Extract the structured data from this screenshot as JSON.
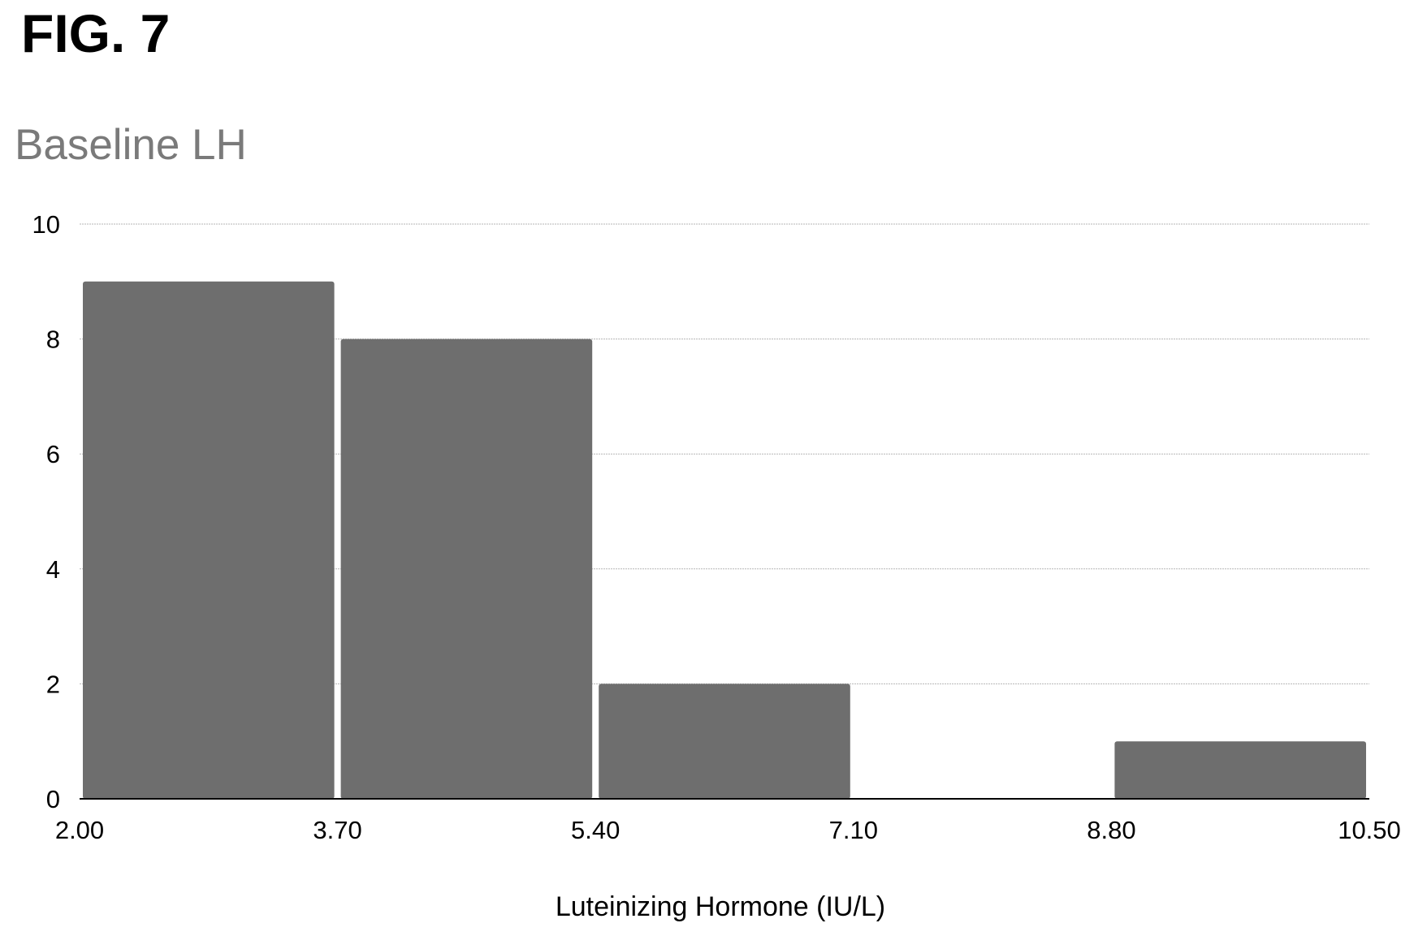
{
  "figure_label": "FIG. 7",
  "colors": {
    "bar_fill": "#6e6e6e",
    "grid": "#b5b5b5",
    "axis": "#000000",
    "title": "#7a7a7a"
  },
  "chart_data": {
    "type": "bar",
    "subtype": "histogram",
    "title": "Baseline LH",
    "xlabel": "Luteinizing Hormone (IU/L)",
    "ylabel": "",
    "x_ticks": [
      "2.00",
      "3.70",
      "5.40",
      "7.10",
      "8.80",
      "10.50"
    ],
    "y_ticks": [
      "0",
      "2",
      "4",
      "6",
      "8",
      "10"
    ],
    "xlim": [
      2.0,
      10.5
    ],
    "ylim": [
      0,
      10
    ],
    "bins": [
      {
        "start": 2.0,
        "end": 3.7,
        "count": 9
      },
      {
        "start": 3.7,
        "end": 5.4,
        "count": 8
      },
      {
        "start": 5.4,
        "end": 7.1,
        "count": 2
      },
      {
        "start": 7.1,
        "end": 8.8,
        "count": 0
      },
      {
        "start": 8.8,
        "end": 10.5,
        "count": 1
      }
    ],
    "grid": true,
    "legend": "none"
  }
}
